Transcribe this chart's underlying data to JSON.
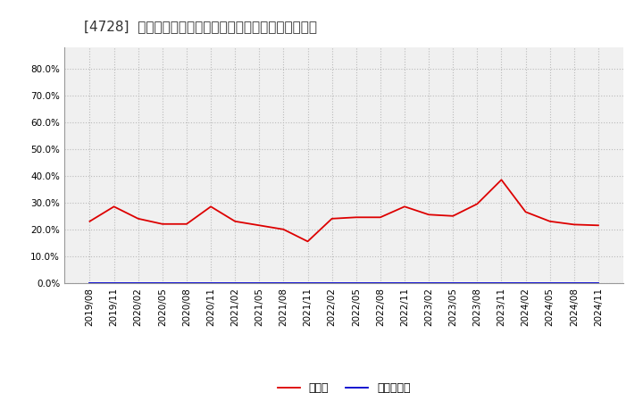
{
  "title": "[4728]  現頲金、有利子負債の総資産に対する比率の推移",
  "cash_dates": [
    "2019/08",
    "2019/11",
    "2020/02",
    "2020/05",
    "2020/08",
    "2020/11",
    "2021/02",
    "2021/05",
    "2021/08",
    "2021/11",
    "2022/02",
    "2022/05",
    "2022/08",
    "2022/11",
    "2023/02",
    "2023/05",
    "2023/08",
    "2023/11",
    "2024/02",
    "2024/05",
    "2024/08",
    "2024/11"
  ],
  "cash_values": [
    0.23,
    0.285,
    0.24,
    0.22,
    0.22,
    0.285,
    0.23,
    0.215,
    0.2,
    0.155,
    0.24,
    0.245,
    0.245,
    0.285,
    0.255,
    0.25,
    0.295,
    0.385,
    0.265,
    0.23,
    0.218,
    0.215
  ],
  "debt_values": [
    0.0,
    0.0,
    0.0,
    0.0,
    0.0,
    0.0,
    0.0,
    0.0,
    0.0,
    0.0,
    0.0,
    0.0,
    0.0,
    0.0,
    0.0,
    0.0,
    0.0,
    0.0,
    0.0,
    0.0,
    0.0,
    0.0
  ],
  "cash_color": "#dd0000",
  "debt_color": "#0000cc",
  "cash_label": "現頲金",
  "debt_label": "有利子負債",
  "ylim": [
    0.0,
    0.88
  ],
  "yticks": [
    0.0,
    0.1,
    0.2,
    0.3,
    0.4,
    0.5,
    0.6,
    0.7,
    0.8
  ],
  "bg_color": "#ffffff",
  "plot_bg_color": "#f0f0f0",
  "grid_color": "#bbbbbb",
  "title_fontsize": 11,
  "legend_fontsize": 9,
  "tick_fontsize": 7.5
}
